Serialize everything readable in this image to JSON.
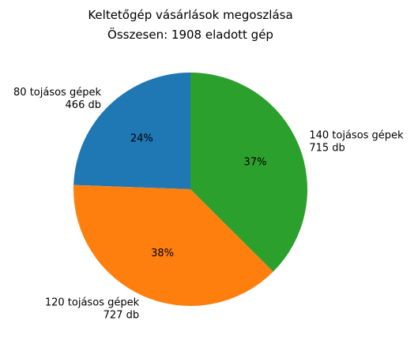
{
  "chart_data": {
    "type": "pie",
    "title": "Keltetőgép vásárlások megoszlása",
    "subtitle": "Összesen: 1908 eladott gép",
    "unit": "db",
    "start_angle_deg": 90,
    "direction": "counterclockwise",
    "slices": [
      {
        "label": "80 tojásos gépek",
        "value": 466,
        "value_text": "466 db",
        "percent_text": "24%",
        "color": "#1f77b4"
      },
      {
        "label": "120 tojásos gépek",
        "value": 727,
        "value_text": "727 db",
        "percent_text": "38%",
        "color": "#ff7f0e"
      },
      {
        "label": "140 tojásos gépek",
        "value": 715,
        "value_text": "715 db",
        "percent_text": "37%",
        "color": "#2ca02c"
      }
    ]
  }
}
